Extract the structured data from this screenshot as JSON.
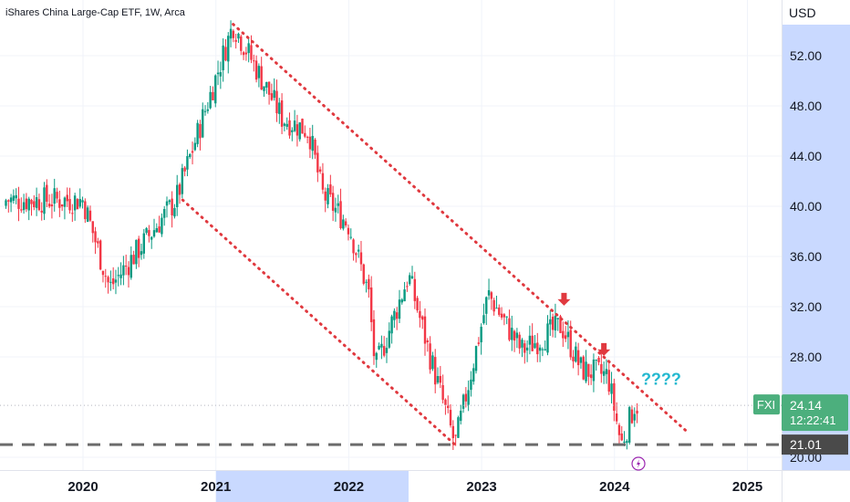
{
  "chart_data": {
    "type": "candlestick",
    "title": "iShares China Large-Cap ETF, 1W, Arca",
    "currency": "USD",
    "symbol": "FXI",
    "last_price": "24.14",
    "countdown": "12:22:41",
    "support_label": "21.01",
    "annotation": "????",
    "y_ticks": [
      "52.00",
      "48.00",
      "44.00",
      "40.00",
      "36.00",
      "32.00",
      "28.00",
      "20.00"
    ],
    "y_tick_values": [
      52,
      48,
      44,
      40,
      36,
      32,
      28,
      20
    ],
    "x_ticks": [
      "2020",
      "2021",
      "2022",
      "2023",
      "2024",
      "2025"
    ],
    "x_tick_values": [
      2020,
      2021,
      2022,
      2023,
      2024,
      2025
    ],
    "highlight_x_range": [
      2021,
      2022.45
    ],
    "ylim": [
      19.5,
      56
    ],
    "xlim": [
      2019.4,
      2025.3
    ],
    "up_color": "#089981",
    "down_color": "#f23645",
    "channel_color": "#e0393f",
    "dashed_line_color": "#6b6b6b",
    "highlight_color": "#c9d9ff",
    "annotation_color": "#22b8cf",
    "arrow_color": "#e0393f",
    "key_points": [
      {
        "date": 2020.0,
        "price": 40.5
      },
      {
        "date": 2020.2,
        "price": 33.5
      },
      {
        "date": 2020.7,
        "price": 40.5
      },
      {
        "date": 2021.13,
        "price": 54.5
      },
      {
        "date": 2021.5,
        "price": 47.0
      },
      {
        "date": 2021.7,
        "price": 46.0
      },
      {
        "date": 2021.8,
        "price": 41.0
      },
      {
        "date": 2022.0,
        "price": 38.5
      },
      {
        "date": 2022.15,
        "price": 33.0
      },
      {
        "date": 2022.2,
        "price": 27.0
      },
      {
        "date": 2022.45,
        "price": 34.5
      },
      {
        "date": 2022.6,
        "price": 28.5
      },
      {
        "date": 2022.8,
        "price": 21.0
      },
      {
        "date": 2023.05,
        "price": 33.0
      },
      {
        "date": 2023.3,
        "price": 28.5
      },
      {
        "date": 2023.6,
        "price": 30.5
      },
      {
        "date": 2023.75,
        "price": 27.0
      },
      {
        "date": 2023.95,
        "price": 26.5
      },
      {
        "date": 2024.05,
        "price": 21.0
      },
      {
        "date": 2024.15,
        "price": 24.14
      }
    ],
    "channel_upper": [
      [
        2021.13,
        54.5
      ],
      [
        2024.55,
        22.0
      ]
    ],
    "channel_lower": [
      [
        2020.75,
        40.5
      ],
      [
        2022.8,
        21.0
      ]
    ],
    "support_level": 21.01,
    "arrows": [
      {
        "date": 2023.62,
        "price": 32.3
      },
      {
        "date": 2023.92,
        "price": 28.3
      }
    ]
  }
}
